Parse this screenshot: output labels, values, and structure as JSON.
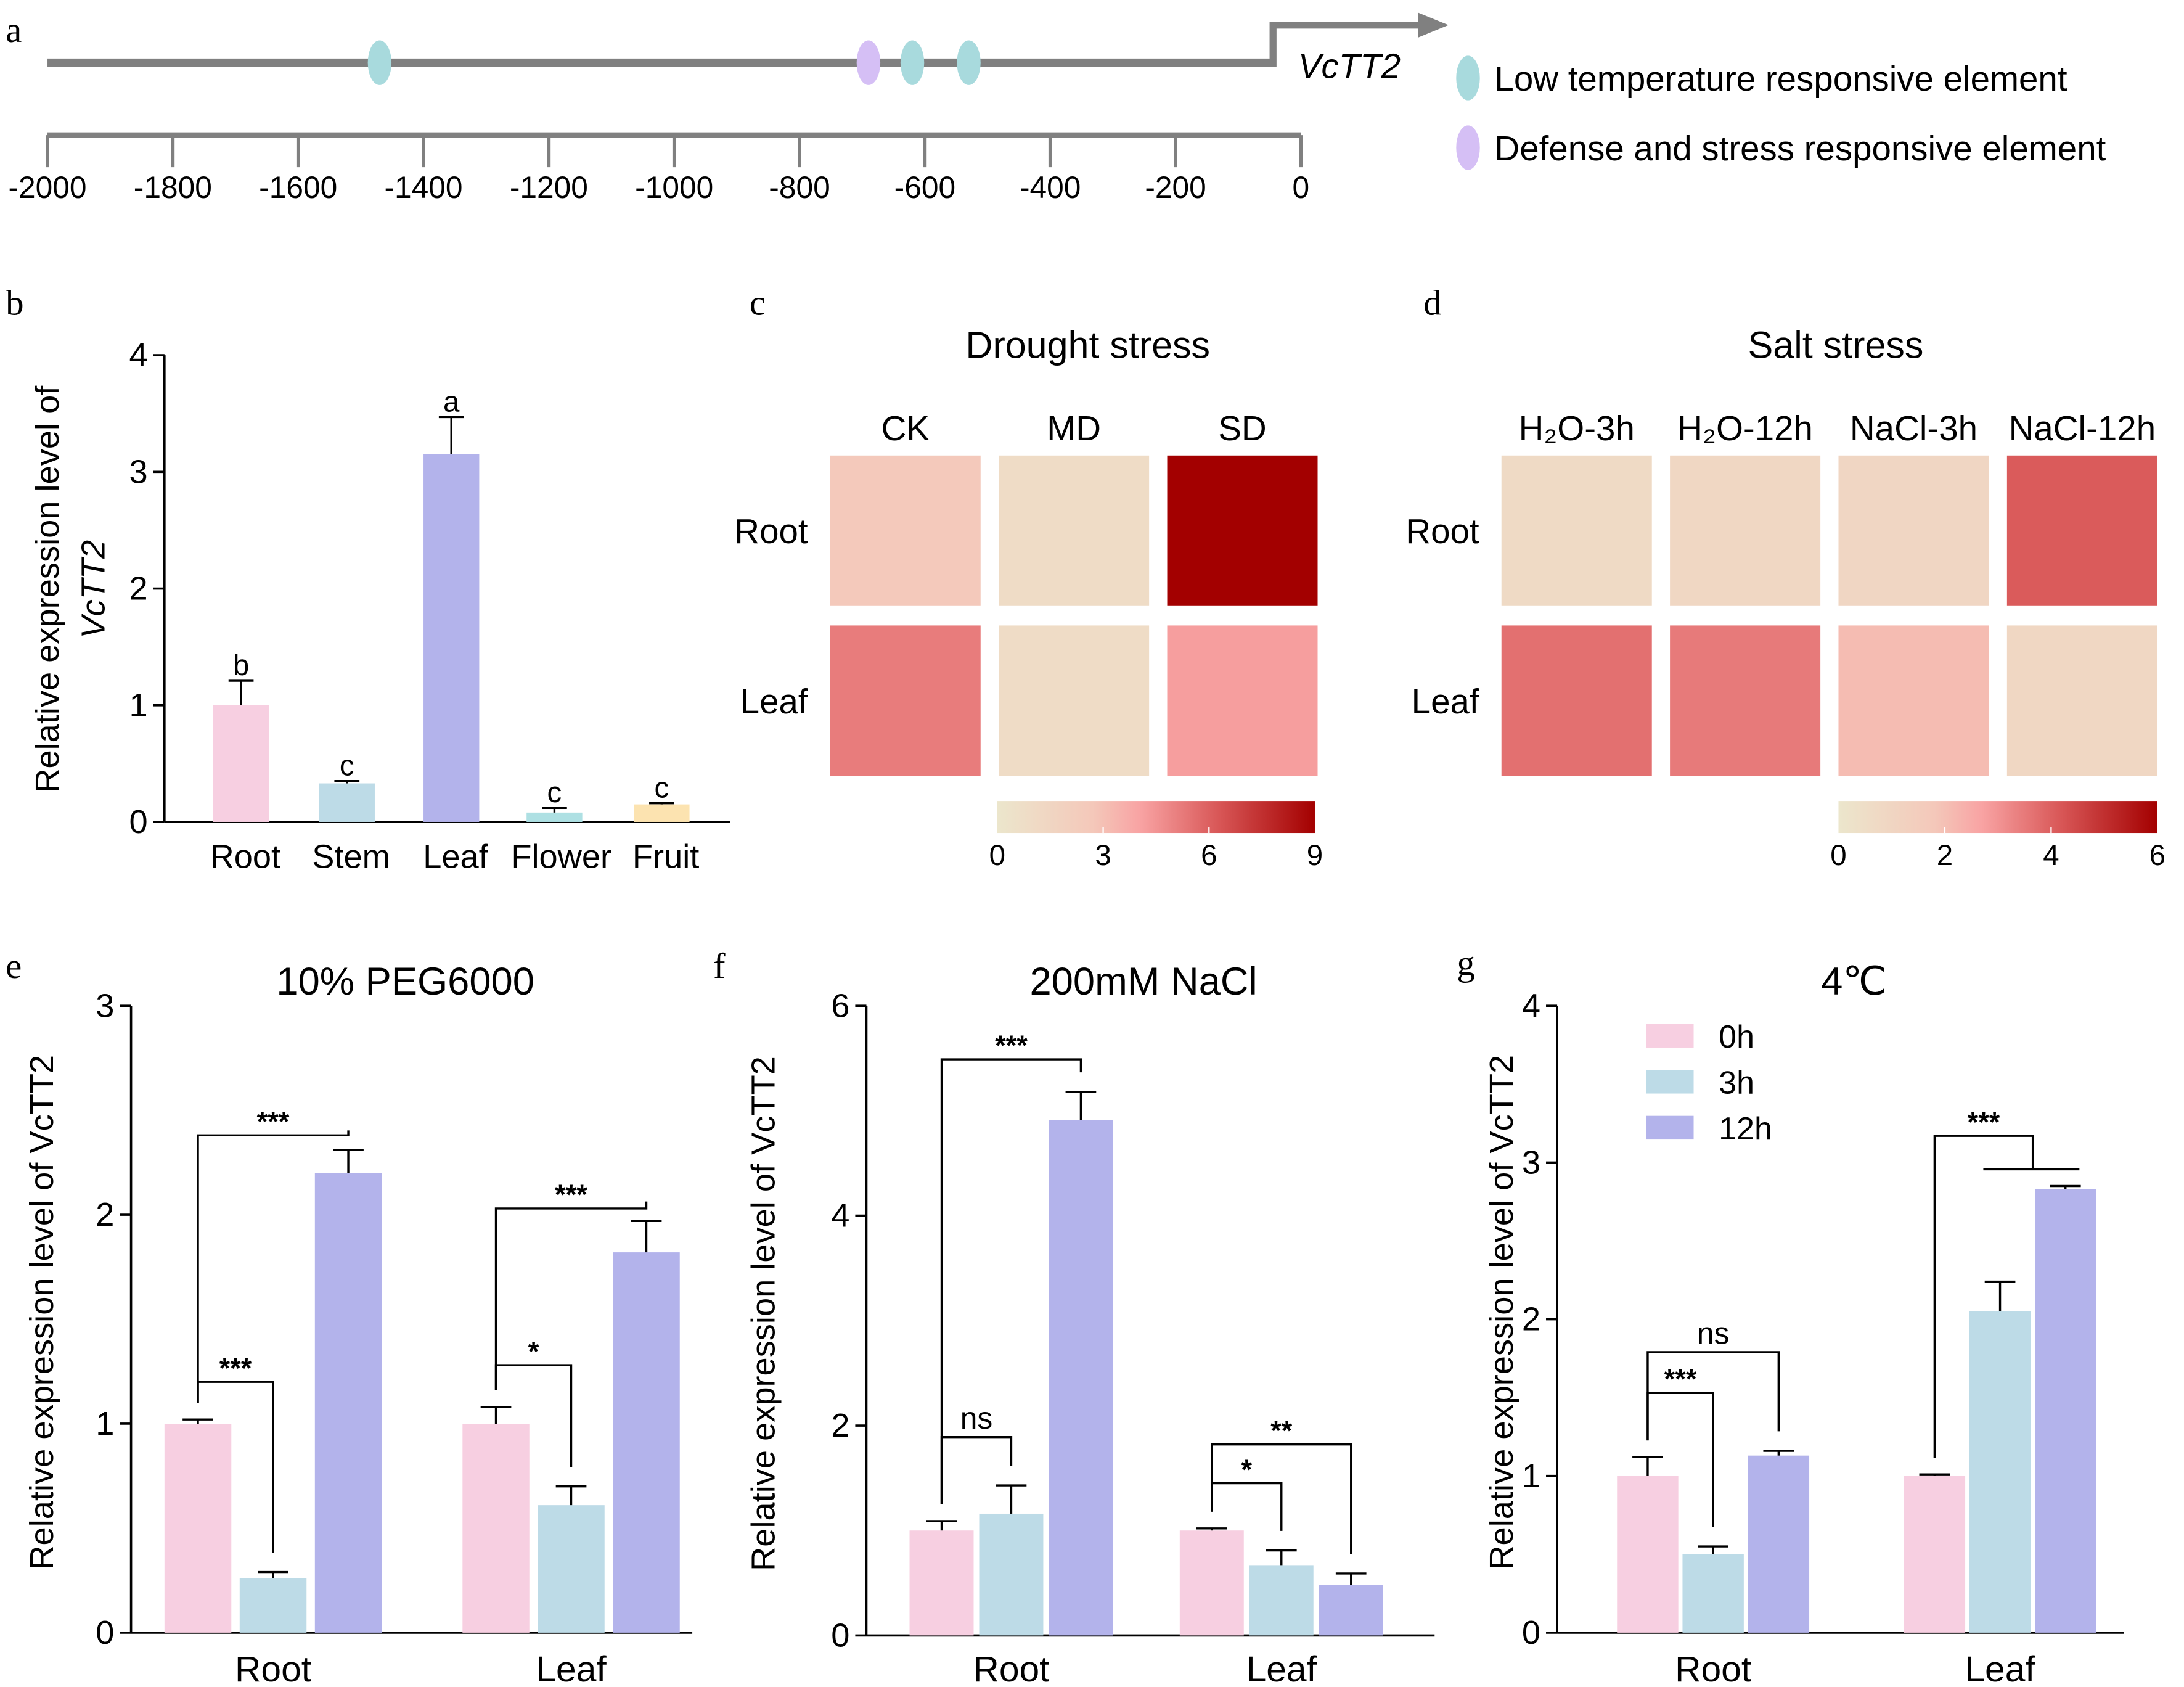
{
  "panels": {
    "a": "a",
    "b": "b",
    "c": "c",
    "d": "d",
    "e": "e",
    "f": "f",
    "g": "g"
  },
  "colors": {
    "pink": "#f7cfe1",
    "lightblue": "#bddbe7",
    "lavender": "#b3b3eb",
    "teal_bar": "#aee0e3",
    "peach_bar": "#fce3b0",
    "low_temp_element": "#a8dadd",
    "defense_element": "#d5bff5",
    "promoter_line": "#808080",
    "heat_low": "#ece6cc",
    "heat_mid": "#f7a3a3",
    "heat_high": "#a30000"
  },
  "chart_data": [
    {
      "id": "a",
      "type": "diagram",
      "gene_label": "VcTT2",
      "axis_ticks": [
        "-2000",
        "-1800",
        "-1600",
        "-1400",
        "-1200",
        "-1000",
        "-800",
        "-600",
        "-400",
        "-200",
        "0"
      ],
      "axis_tick_values": [
        -2000,
        -1800,
        -1600,
        -1400,
        -1200,
        -1000,
        -800,
        -600,
        -400,
        -200,
        0
      ],
      "range": [
        -2000,
        0
      ],
      "elements": [
        {
          "type": "low_temp",
          "position": -1470
        },
        {
          "type": "defense",
          "position": -690
        },
        {
          "type": "low_temp",
          "position": -620
        },
        {
          "type": "low_temp",
          "position": -530
        }
      ],
      "legend": [
        {
          "type": "low_temp",
          "label": "Low temperature responsive element"
        },
        {
          "type": "defense",
          "label": "Defense and stress responsive element"
        }
      ]
    },
    {
      "id": "b",
      "type": "bar",
      "title": "",
      "ylabel_line1": "Relative expression level of",
      "ylabel_line2": "VcTT2",
      "ylim": [
        0,
        4
      ],
      "yticks": [
        "0",
        "1",
        "2",
        "3",
        "4"
      ],
      "ytick_values": [
        0,
        1,
        2,
        3,
        4
      ],
      "categories": [
        "Root",
        "Stem",
        "Leaf",
        "Flower",
        "Fruit"
      ],
      "values": [
        1.0,
        0.33,
        3.15,
        0.08,
        0.15
      ],
      "errors": [
        0.21,
        0.02,
        0.32,
        0.04,
        0.01
      ],
      "letters": [
        "b",
        "c",
        "a",
        "c",
        "c"
      ],
      "bar_colors": [
        "pink",
        "lightblue",
        "lavender",
        "teal_bar",
        "peach_bar"
      ]
    },
    {
      "id": "c",
      "type": "heatmap",
      "title": "Drought stress",
      "columns": [
        "CK",
        "MD",
        "SD"
      ],
      "rows": [
        "Root",
        "Leaf"
      ],
      "values": [
        [
          2.6,
          0.9,
          9.0
        ],
        [
          5.2,
          0.9,
          4.2
        ]
      ],
      "scale_range": [
        0,
        9
      ],
      "scale_ticks": [
        "0",
        "3",
        "6",
        "9"
      ],
      "scale_tick_values": [
        0,
        3,
        6,
        9
      ]
    },
    {
      "id": "d",
      "type": "heatmap",
      "title": "Salt stress",
      "columns": [
        "H₂O-3h",
        "H₂O-12h",
        "NaCl-3h",
        "NaCl-12h"
      ],
      "rows": [
        "Root",
        "Leaf"
      ],
      "values": [
        [
          0.7,
          0.9,
          0.95,
          4.1
        ],
        [
          3.7,
          3.5,
          2.1,
          0.9
        ]
      ],
      "scale_range": [
        0,
        6
      ],
      "scale_ticks": [
        "0",
        "2",
        "4",
        "6"
      ],
      "scale_tick_values": [
        0,
        2,
        4,
        6
      ]
    },
    {
      "id": "e",
      "type": "bar",
      "title": "10% PEG6000",
      "ylabel": "Relative expression level of VcTT2",
      "ylim": [
        0,
        3
      ],
      "yticks": [
        "0",
        "1",
        "2",
        "3"
      ],
      "ytick_values": [
        0,
        1,
        2,
        3
      ],
      "categories": [
        "Root",
        "Leaf"
      ],
      "series": [
        {
          "name": "0h",
          "values": [
            1.0,
            1.0
          ],
          "errors": [
            0.02,
            0.08
          ]
        },
        {
          "name": "3h",
          "values": [
            0.26,
            0.61
          ],
          "errors": [
            0.03,
            0.09
          ]
        },
        {
          "name": "12h",
          "values": [
            2.2,
            1.82
          ],
          "errors": [
            0.11,
            0.15
          ]
        }
      ],
      "significance": [
        {
          "group": 0,
          "from": 0,
          "to": 2,
          "label": "***",
          "level": 2.38
        },
        {
          "group": 0,
          "from": 0,
          "to": 1,
          "label": "***",
          "level": 1.2
        },
        {
          "group": 1,
          "from": 0,
          "to": 2,
          "label": "***",
          "level": 2.03
        },
        {
          "group": 1,
          "from": 0,
          "to": 1,
          "label": "*",
          "level": 1.28
        }
      ]
    },
    {
      "id": "f",
      "type": "bar",
      "title": "200mM NaCl",
      "ylabel": "Relative expression level of VcTT2",
      "ylim": [
        0,
        6
      ],
      "yticks": [
        "0",
        "2",
        "4",
        "6"
      ],
      "ytick_values": [
        0,
        2,
        4,
        6
      ],
      "categories": [
        "Root",
        "Leaf"
      ],
      "series": [
        {
          "name": "0h",
          "values": [
            1.0,
            1.0
          ],
          "errors": [
            0.09,
            0.02
          ]
        },
        {
          "name": "3h",
          "values": [
            1.16,
            0.67
          ],
          "errors": [
            0.27,
            0.14
          ]
        },
        {
          "name": "12h",
          "values": [
            4.91,
            0.48
          ],
          "errors": [
            0.27,
            0.11
          ]
        }
      ],
      "significance": [
        {
          "group": 0,
          "from": 0,
          "to": 2,
          "label": "***",
          "level": 5.49
        },
        {
          "group": 0,
          "from": 0,
          "to": 1,
          "label": "ns",
          "level": 1.89
        },
        {
          "group": 1,
          "from": 0,
          "to": 2,
          "label": "**",
          "level": 1.82
        },
        {
          "group": 1,
          "from": 0,
          "to": 1,
          "label": "*",
          "level": 1.45
        }
      ]
    },
    {
      "id": "g",
      "type": "bar",
      "title": "4℃",
      "ylabel": "Relative expression level of VcTT2",
      "ylim": [
        0,
        4
      ],
      "yticks": [
        "0",
        "1",
        "2",
        "3",
        "4"
      ],
      "ytick_values": [
        0,
        1,
        2,
        3,
        4
      ],
      "categories": [
        "Root",
        "Leaf"
      ],
      "legend": [
        "0h",
        "3h",
        "12h"
      ],
      "legend_position": "top-left",
      "series": [
        {
          "name": "0h",
          "values": [
            1.0,
            1.0
          ],
          "errors": [
            0.12,
            0.01
          ]
        },
        {
          "name": "3h",
          "values": [
            0.5,
            2.05
          ],
          "errors": [
            0.05,
            0.19
          ]
        },
        {
          "name": "12h",
          "values": [
            1.13,
            2.83
          ],
          "errors": [
            0.03,
            0.02
          ]
        }
      ],
      "significance": [
        {
          "group": 0,
          "from": 0,
          "to": 2,
          "label": "ns",
          "level": 1.79
        },
        {
          "group": 0,
          "from": 0,
          "to": 1,
          "label": "***",
          "level": 1.53
        },
        {
          "group": 1,
          "from": 0,
          "to": "1-2",
          "label": "***",
          "level": 3.17
        }
      ]
    }
  ]
}
